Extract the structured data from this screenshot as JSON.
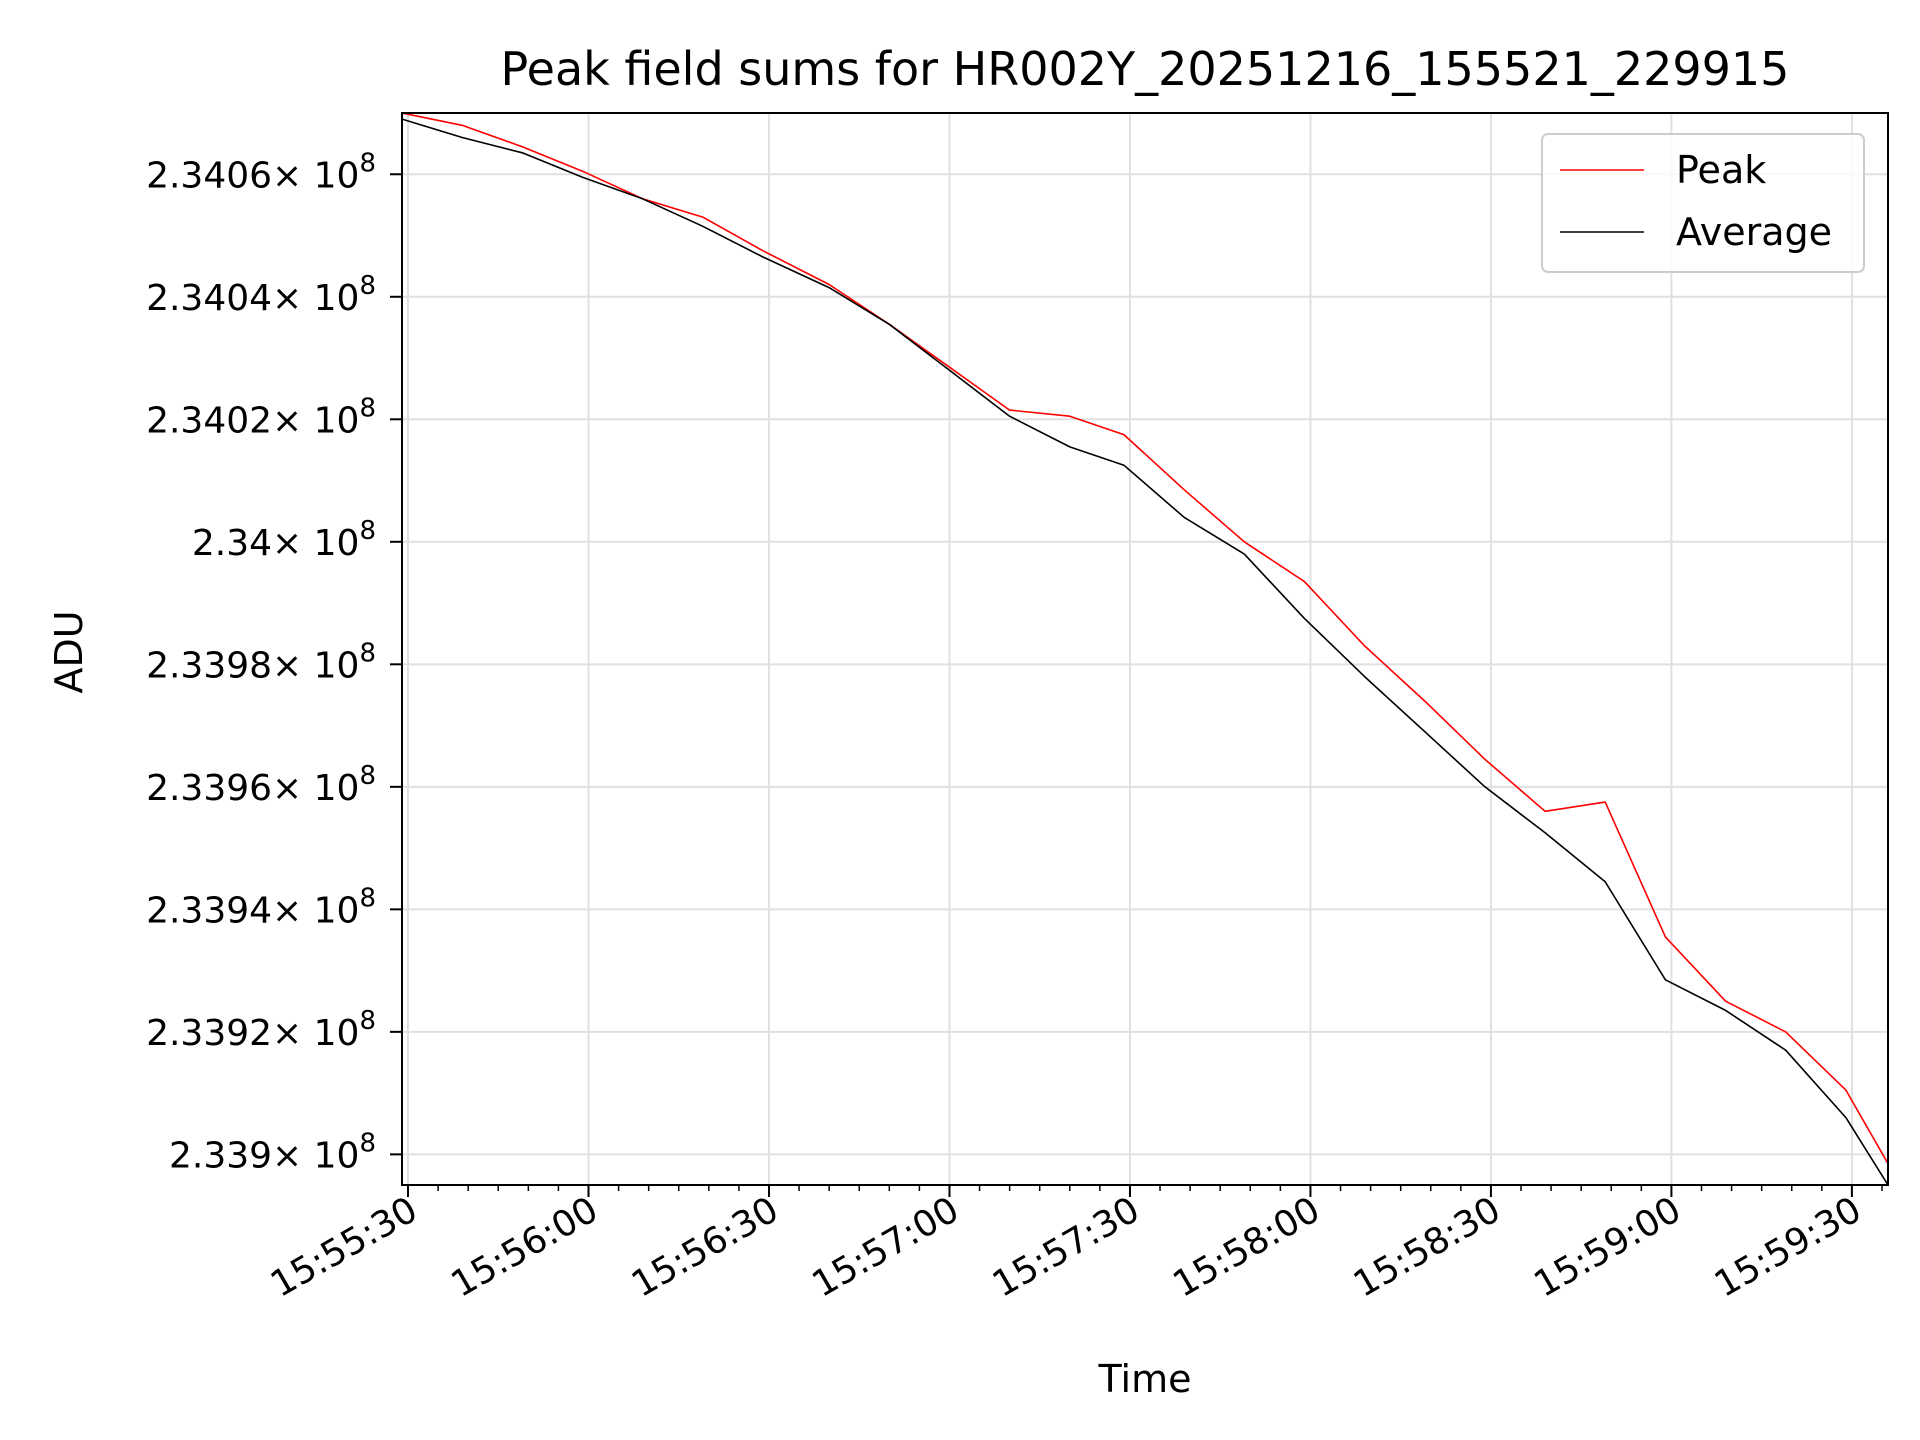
{
  "chart_data": {
    "type": "line",
    "title": "Peak field sums for HR002Y_20251216_155521_229915",
    "xlabel": "Time",
    "ylabel": "ADU",
    "x_ticks": [
      "15:55:30",
      "15:56:00",
      "15:56:30",
      "15:57:00",
      "15:57:30",
      "15:58:00",
      "15:58:30",
      "15:59:00",
      "15:59:30"
    ],
    "y_ticks": [
      {
        "value": 233900000,
        "mantissa": "2.339"
      },
      {
        "value": 233920000,
        "mantissa": "2.3392"
      },
      {
        "value": 233940000,
        "mantissa": "2.3394"
      },
      {
        "value": 233960000,
        "mantissa": "2.3396"
      },
      {
        "value": 233980000,
        "mantissa": "2.3398"
      },
      {
        "value": 234000000,
        "mantissa": "2.34"
      },
      {
        "value": 234020000,
        "mantissa": "2.3402"
      },
      {
        "value": 234040000,
        "mantissa": "2.3404"
      },
      {
        "value": 234060000,
        "mantissa": "2.3406"
      }
    ],
    "tick_multiplier": "× 10",
    "tick_exponent": "8",
    "xlim": [
      "15:55:29",
      "15:59:36"
    ],
    "ylim": [
      233895000,
      234070000
    ],
    "grid": true,
    "legend_position": "top-right",
    "series": [
      {
        "name": "Peak",
        "color": "#ff0000",
        "points": [
          [
            "15:55:29",
            234070000
          ],
          [
            "15:55:39",
            234068000
          ],
          [
            "15:55:49",
            234064500
          ],
          [
            "15:55:59",
            234060500
          ],
          [
            "15:56:09",
            234056000
          ],
          [
            "15:56:19",
            234053000
          ],
          [
            "15:56:29",
            234047500
          ],
          [
            "15:56:40",
            234042000
          ],
          [
            "15:56:50",
            234035500
          ],
          [
            "15:57:00",
            234028500
          ],
          [
            "15:57:10",
            234021500
          ],
          [
            "15:57:20",
            234020500
          ],
          [
            "15:57:29",
            234017500
          ],
          [
            "15:57:39",
            234008500
          ],
          [
            "15:57:49",
            234000000
          ],
          [
            "15:57:59",
            233993500
          ],
          [
            "15:58:09",
            233983000
          ],
          [
            "15:58:19",
            233974000
          ],
          [
            "15:58:29",
            233964500
          ],
          [
            "15:58:39",
            233956000
          ],
          [
            "15:58:49",
            233957500
          ],
          [
            "15:58:59",
            233935500
          ],
          [
            "15:59:09",
            233925000
          ],
          [
            "15:59:19",
            233920000
          ],
          [
            "15:59:29",
            233910500
          ],
          [
            "15:59:36",
            233898500
          ]
        ]
      },
      {
        "name": "Average",
        "color": "#000000",
        "points": [
          [
            "15:55:29",
            234069000
          ],
          [
            "15:55:39",
            234066000
          ],
          [
            "15:55:49",
            234063500
          ],
          [
            "15:55:59",
            234059500
          ],
          [
            "15:56:09",
            234056000
          ],
          [
            "15:56:19",
            234051500
          ],
          [
            "15:56:29",
            234046500
          ],
          [
            "15:56:40",
            234041500
          ],
          [
            "15:56:50",
            234035500
          ],
          [
            "15:57:00",
            234028000
          ],
          [
            "15:57:10",
            234020500
          ],
          [
            "15:57:20",
            234015500
          ],
          [
            "15:57:29",
            234012500
          ],
          [
            "15:57:39",
            234004000
          ],
          [
            "15:57:49",
            233998000
          ],
          [
            "15:57:59",
            233987500
          ],
          [
            "15:58:09",
            233978000
          ],
          [
            "15:58:19",
            233969000
          ],
          [
            "15:58:29",
            233960000
          ],
          [
            "15:58:39",
            233952500
          ],
          [
            "15:58:49",
            233944500
          ],
          [
            "15:58:59",
            233928500
          ],
          [
            "15:59:09",
            233923500
          ],
          [
            "15:59:19",
            233917000
          ],
          [
            "15:59:29",
            233906000
          ],
          [
            "15:59:36",
            233895000
          ]
        ]
      }
    ]
  }
}
